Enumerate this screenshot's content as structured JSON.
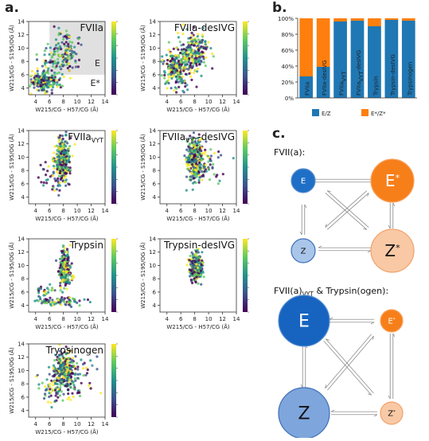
{
  "panel_labels": {
    "a": "a.",
    "b": "b.",
    "c": "c."
  },
  "colorbar": {
    "colors": [
      "#440154",
      "#3b528b",
      "#21918c",
      "#5ec962",
      "#fde725"
    ]
  },
  "chart_data": [
    {
      "type": "scatter",
      "title": "FVIIa",
      "title_sub": "",
      "title_suffix": "",
      "xlabel": "W215/CG - H57/CG (Å)",
      "ylabel": "W215/CG - S195/OG (Å)",
      "xlim": [
        3,
        14
      ],
      "ylim": [
        3,
        14
      ],
      "xticks": [
        4,
        6,
        8,
        10,
        12,
        14
      ],
      "yticks": [
        4,
        6,
        8,
        10,
        12,
        14
      ],
      "regions": [
        {
          "label": "E",
          "x": [
            6,
            14
          ],
          "y": [
            6,
            14
          ]
        }
      ],
      "region_labels": [
        "E",
        "E*"
      ],
      "clusters": [
        {
          "cx": 5.2,
          "cy": 5.0,
          "sx": 1.0,
          "sy": 0.7,
          "n": 220
        },
        {
          "cx": 8.3,
          "cy": 9.6,
          "sx": 0.9,
          "sy": 1.6,
          "n": 110
        },
        {
          "cx": 6.7,
          "cy": 7.6,
          "sx": 1.2,
          "sy": 1.0,
          "n": 70
        }
      ]
    },
    {
      "type": "scatter",
      "title": "FVIIa-desIVG",
      "title_sub": "",
      "title_suffix": "",
      "xlabel": "W215/CG - H57/CG (Å)",
      "ylabel": "W215/CG - S195/OG (Å)",
      "xlim": [
        3,
        14
      ],
      "ylim": [
        3,
        14
      ],
      "xticks": [
        4,
        6,
        8,
        10,
        12,
        14
      ],
      "yticks": [
        4,
        6,
        8,
        10,
        12,
        14
      ],
      "regions": [],
      "region_labels": [],
      "clusters": [
        {
          "cx": 5.4,
          "cy": 6.6,
          "sx": 0.9,
          "sy": 1.4,
          "n": 210
        },
        {
          "cx": 8.2,
          "cy": 9.3,
          "sx": 0.9,
          "sy": 1.5,
          "n": 160
        },
        {
          "cx": 6.7,
          "cy": 9.0,
          "sx": 1.0,
          "sy": 1.4,
          "n": 90
        }
      ]
    },
    {
      "type": "scatter",
      "title": "FVIIa",
      "title_sub": "VYT",
      "title_suffix": "",
      "xlabel": "W215/CG - H57/CG (Å)",
      "ylabel": "W215/CG - S195/OG (Å)",
      "xlim": [
        3,
        14
      ],
      "ylim": [
        3,
        14
      ],
      "xticks": [
        4,
        6,
        8,
        10,
        12,
        14
      ],
      "yticks": [
        4,
        6,
        8,
        10,
        12,
        14
      ],
      "regions": [],
      "region_labels": [],
      "clusters": [
        {
          "cx": 7.9,
          "cy": 9.6,
          "sx": 0.55,
          "sy": 1.6,
          "n": 300
        },
        {
          "cx": 6.0,
          "cy": 7.0,
          "sx": 1.0,
          "sy": 1.0,
          "n": 30
        }
      ]
    },
    {
      "type": "scatter",
      "title": "FVIIa",
      "title_sub": "VYT",
      "title_suffix": "-desIVG",
      "xlabel": "W215/CG - H57/CG (Å)",
      "ylabel": "W215/CG - S195/OG (Å)",
      "xlim": [
        3,
        14
      ],
      "ylim": [
        3,
        14
      ],
      "xticks": [
        4,
        6,
        8,
        10,
        12,
        14
      ],
      "yticks": [
        4,
        6,
        8,
        10,
        12,
        14
      ],
      "regions": [],
      "region_labels": [],
      "clusters": [
        {
          "cx": 8.0,
          "cy": 9.6,
          "sx": 0.6,
          "sy": 1.7,
          "n": 290
        },
        {
          "cx": 9.8,
          "cy": 8.6,
          "sx": 1.4,
          "sy": 1.1,
          "n": 50
        }
      ]
    },
    {
      "type": "scatter",
      "title": "Trypsin",
      "title_sub": "",
      "title_suffix": "",
      "xlabel": "W215/CG - H57/CG (Å)",
      "ylabel": "W215/CG - S195/OG (Å)",
      "xlim": [
        3,
        14
      ],
      "ylim": [
        3,
        14
      ],
      "xticks": [
        4,
        6,
        8,
        10,
        12,
        14
      ],
      "yticks": [
        4,
        6,
        8,
        10,
        12,
        14
      ],
      "regions": [],
      "region_labels": [],
      "clusters": [
        {
          "cx": 8.1,
          "cy": 9.5,
          "sx": 0.4,
          "sy": 1.4,
          "n": 260
        },
        {
          "cx": 7.0,
          "cy": 4.6,
          "sx": 1.8,
          "sy": 0.35,
          "n": 90
        },
        {
          "cx": 5.0,
          "cy": 6.2,
          "sx": 0.8,
          "sy": 0.5,
          "n": 25
        }
      ]
    },
    {
      "type": "scatter",
      "title": "Trypsin-desIVG",
      "title_sub": "",
      "title_suffix": "",
      "xlabel": "W215/CG - H57/CG (Å)",
      "ylabel": "W215/CG - S195/OG (Å)",
      "xlim": [
        3,
        14
      ],
      "ylim": [
        3,
        14
      ],
      "xticks": [
        4,
        6,
        8,
        10,
        12,
        14
      ],
      "yticks": [
        4,
        6,
        8,
        10,
        12,
        14
      ],
      "regions": [],
      "region_labels": [],
      "clusters": [
        {
          "cx": 8.2,
          "cy": 9.6,
          "sx": 0.45,
          "sy": 1.0,
          "n": 260
        }
      ]
    },
    {
      "type": "scatter",
      "title": "Trypsinogen",
      "title_sub": "",
      "title_suffix": "",
      "xlabel": "W215/CG - H57/CG (Å)",
      "ylabel": "W215/CG - S195/OG (Å)",
      "xlim": [
        3,
        14
      ],
      "ylim": [
        3,
        14
      ],
      "xticks": [
        4,
        6,
        8,
        10,
        12,
        14
      ],
      "yticks": [
        4,
        6,
        8,
        10,
        12,
        14
      ],
      "regions": [],
      "region_labels": [],
      "clusters": [
        {
          "cx": 8.2,
          "cy": 10.0,
          "sx": 0.8,
          "sy": 1.4,
          "n": 250
        },
        {
          "cx": 7.2,
          "cy": 7.4,
          "sx": 1.4,
          "sy": 1.3,
          "n": 90
        },
        {
          "cx": 10.5,
          "cy": 9.0,
          "sx": 1.4,
          "sy": 1.5,
          "n": 40
        }
      ]
    },
    {
      "type": "bar",
      "stacked": true,
      "categories": [
        "FVIIa",
        "FVIIa-desIVG",
        "FVIIa_VYT",
        "FVIIa_VYT-desIVG",
        "Trypsin",
        "Trypsin-desIVG",
        "Trypsinogen"
      ],
      "series": [
        {
          "name": "E/Z",
          "color": "#1f77b4",
          "values": [
            27,
            39,
            96,
            97,
            90,
            98,
            97
          ]
        },
        {
          "name": "E*/Z*",
          "color": "#ff7f0e",
          "values": [
            73,
            61,
            4,
            3,
            10,
            2,
            3
          ]
        }
      ],
      "ylim": [
        0,
        100
      ],
      "yticks": [
        "0%",
        "20%",
        "40%",
        "60%",
        "80%",
        "100%"
      ]
    }
  ],
  "networks": {
    "top": {
      "title": "FVII(a):",
      "title_sub": "",
      "title_suffix": "",
      "nodes": {
        "E": "E",
        "Estar": "E*",
        "Z": "Z",
        "Zstar": "Z*"
      }
    },
    "bottom": {
      "title": "FVII(a)",
      "title_sub": "VYT",
      "title_suffix": " & Trypsin(ogen):",
      "nodes": {
        "E": "E",
        "Estar": "E*",
        "Z": "Z",
        "Zstar": "Z*"
      }
    }
  }
}
